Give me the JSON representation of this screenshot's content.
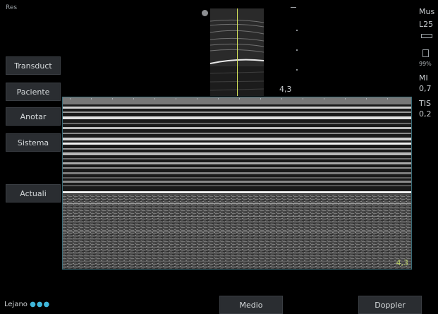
{
  "top_label": "Res",
  "left_menu": [
    "Transduct",
    "Paciente",
    "Anotar",
    "Sistema",
    "Actuali"
  ],
  "right_panel": {
    "preset": "Mus",
    "transducer": "L25",
    "battery": "99%",
    "mi_label": "MI",
    "mi_value": "0,7",
    "tis_label": "TIS",
    "tis_value": "0,2"
  },
  "depth_top": "4,3",
  "depth_bottom": "4,3",
  "bottom_bar": {
    "lejano_label": "Lejano",
    "medio_button": "Medio",
    "doppler_button": "Doppler"
  },
  "colors": {
    "cursor_line": "#d8e85a",
    "frame_border": "#3b6c78",
    "depth_text": "#b9cf6a",
    "dots": "#3fb6d9"
  }
}
